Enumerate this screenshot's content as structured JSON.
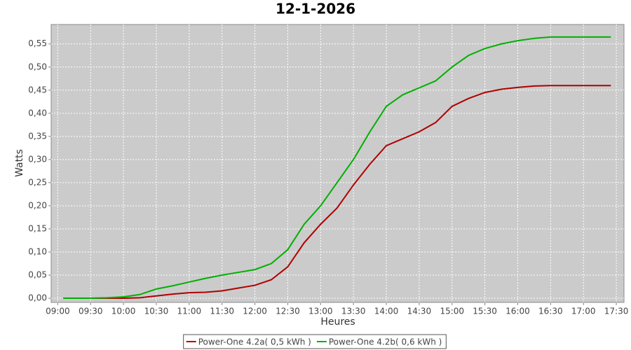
{
  "chart_data": {
    "type": "line",
    "title": "12-1-2026",
    "x_label": "Heures",
    "y_label": "Watts",
    "x": [
      "09:05",
      "09:15",
      "09:30",
      "09:45",
      "10:00",
      "10:15",
      "10:30",
      "10:45",
      "11:00",
      "11:15",
      "11:30",
      "11:45",
      "12:00",
      "12:15",
      "12:30",
      "12:45",
      "13:00",
      "13:15",
      "13:30",
      "13:45",
      "14:00",
      "14:15",
      "14:30",
      "14:45",
      "15:00",
      "15:15",
      "15:30",
      "15:45",
      "16:00",
      "16:15",
      "16:30",
      "16:45",
      "17:00",
      "17:15",
      "17:25"
    ],
    "series": [
      {
        "name": "Power-One 4.2a( 0,5 kWh )",
        "color": "#b00000",
        "values": [
          0,
          0,
          0,
          0,
          0,
          0.001,
          0.005,
          0.009,
          0.012,
          0.013,
          0.016,
          0.022,
          0.028,
          0.04,
          0.068,
          0.12,
          0.16,
          0.195,
          0.245,
          0.29,
          0.33,
          0.345,
          0.36,
          0.38,
          0.415,
          0.432,
          0.445,
          0.452,
          0.456,
          0.459,
          0.46,
          0.46,
          0.46,
          0.46,
          0.46
        ]
      },
      {
        "name": "Power-One 4.2b( 0,6 kWh )",
        "color": "#00b000",
        "values": [
          0,
          0,
          0,
          0.001,
          0.003,
          0.008,
          0.02,
          0.027,
          0.035,
          0.043,
          0.05,
          0.056,
          0.062,
          0.075,
          0.105,
          0.16,
          0.2,
          0.25,
          0.3,
          0.36,
          0.415,
          0.44,
          0.455,
          0.47,
          0.5,
          0.525,
          0.54,
          0.55,
          0.557,
          0.562,
          0.565,
          0.565,
          0.565,
          0.565,
          0.565
        ]
      }
    ],
    "xlim": [
      "08:54",
      "17:37"
    ],
    "xticks": [
      "09:00",
      "09:30",
      "10:00",
      "10:30",
      "11:00",
      "11:30",
      "12:00",
      "12:30",
      "13:00",
      "13:30",
      "14:00",
      "14:30",
      "15:00",
      "15:30",
      "16:00",
      "16:30",
      "17:00",
      "17:30"
    ],
    "ylim": [
      -0.009,
      0.592
    ],
    "yticks": [
      {
        "value": 0,
        "label": "0,00"
      },
      {
        "value": 0.05,
        "label": "0,05"
      },
      {
        "value": 0.1,
        "label": "0,10"
      },
      {
        "value": 0.15,
        "label": "0,15"
      },
      {
        "value": 0.2,
        "label": "0,20"
      },
      {
        "value": 0.25,
        "label": "0,25"
      },
      {
        "value": 0.3,
        "label": "0,30"
      },
      {
        "value": 0.35,
        "label": "0,35"
      },
      {
        "value": 0.4,
        "label": "0,40"
      },
      {
        "value": 0.45,
        "label": "0,45"
      },
      {
        "value": 0.5,
        "label": "0,50"
      },
      {
        "value": 0.55,
        "label": "0,55"
      }
    ],
    "grid": true,
    "legend": "bottom"
  }
}
